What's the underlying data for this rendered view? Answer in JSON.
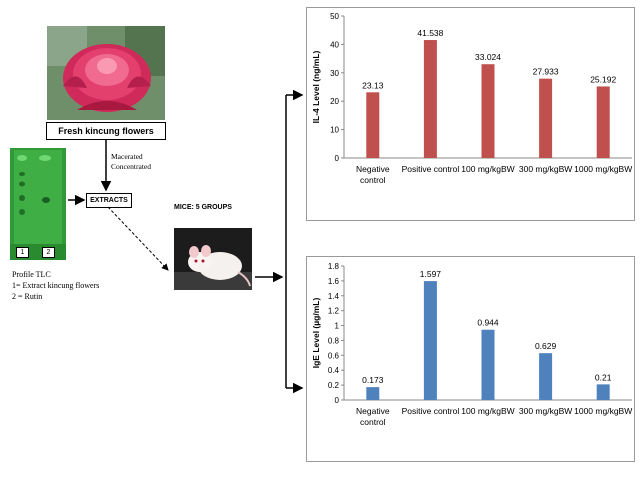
{
  "flower_label": "Fresh kincung flowers",
  "process_text": [
    "Macerated",
    "Concentrated"
  ],
  "extracts_label": "EXTRACTS",
  "tlc": {
    "lanes": [
      "1",
      "2"
    ],
    "caption": [
      "Profile TLC",
      "1= Extract kincung flowers",
      "2 = Rutin"
    ]
  },
  "mice_label": "MICE: 5 GROUPS",
  "colors": {
    "il4_bar": "#c0504d",
    "ige_bar": "#4f81bd",
    "tlc_plate": "#2c8f33"
  },
  "chart_data": [
    {
      "type": "bar",
      "categories": [
        "Negative control",
        "Positive control",
        "100 mg/kgBW",
        "300 mg/kgBW",
        "1000 mg/kgBW"
      ],
      "values": [
        23.13,
        41.538,
        33.024,
        27.933,
        25.192
      ],
      "value_labels": [
        "23.13",
        "41.538",
        "33.024",
        "27.933",
        "25.192"
      ],
      "ylabel": "IL-4 Level (ng/mL)",
      "ylim": [
        0,
        50
      ],
      "yticks": [
        "0",
        "10",
        "20",
        "30",
        "40",
        "50"
      ],
      "grid": false
    },
    {
      "type": "bar",
      "categories": [
        "Negative control",
        "Positive control",
        "100 mg/kgBW",
        "300 mg/kgBW",
        "1000 mg/kgBW"
      ],
      "values": [
        0.173,
        1.597,
        0.944,
        0.629,
        0.21
      ],
      "value_labels": [
        "0.173",
        "1.597",
        "0.944",
        "0.629",
        "0.21"
      ],
      "ylabel": "IgE Level (µg/mL)",
      "ylim": [
        0,
        1.8
      ],
      "yticks": [
        "0",
        "0.2",
        "0.4",
        "0.6",
        "0.8",
        "1",
        "1.2",
        "1.4",
        "1.6",
        "1.8"
      ],
      "grid": false
    }
  ]
}
